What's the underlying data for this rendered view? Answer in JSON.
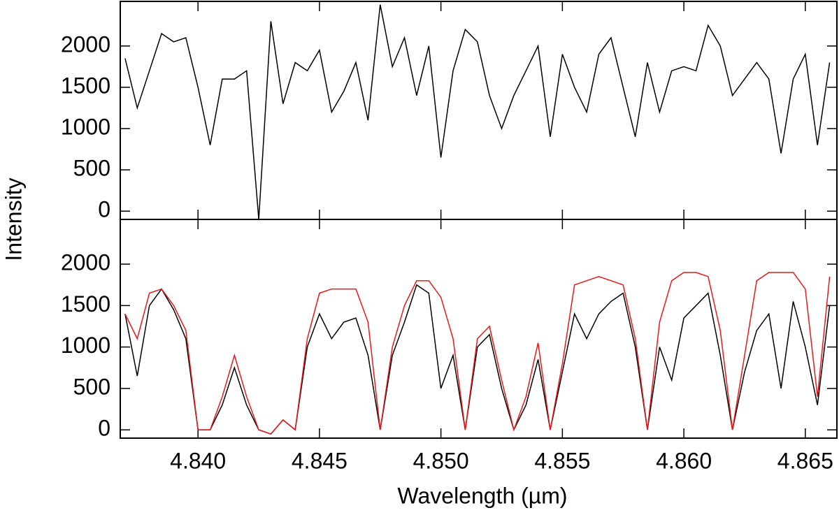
{
  "chart_data": [
    {
      "type": "line",
      "ylabel": "Intensity",
      "x": [
        4.837,
        4.8375,
        4.838,
        4.8385,
        4.839,
        4.8395,
        4.84,
        4.8405,
        4.841,
        4.8415,
        4.842,
        4.8425,
        4.843,
        4.8435,
        4.844,
        4.8445,
        4.845,
        4.8455,
        4.846,
        4.8465,
        4.847,
        4.8475,
        4.848,
        4.8485,
        4.849,
        4.8495,
        4.85,
        4.8505,
        4.851,
        4.8515,
        4.852,
        4.8525,
        4.853,
        4.8535,
        4.854,
        4.8545,
        4.855,
        4.8555,
        4.856,
        4.8565,
        4.857,
        4.8575,
        4.858,
        4.8585,
        4.859,
        4.8595,
        4.86,
        4.8605,
        4.861,
        4.8615,
        4.862,
        4.8625,
        4.863,
        4.8635,
        4.864,
        4.8645,
        4.865,
        4.8655,
        4.866
      ],
      "series": [
        {
          "color": "#000000",
          "values": [
            1850,
            1250,
            1700,
            2150,
            2050,
            2100,
            1500,
            800,
            1600,
            1600,
            1700,
            -100,
            2300,
            1300,
            1800,
            1700,
            1950,
            1200,
            1450,
            1800,
            1100,
            2500,
            1750,
            2100,
            1400,
            2000,
            650,
            1700,
            2200,
            2050,
            1400,
            1000,
            1400,
            1700,
            2000,
            900,
            1900,
            1500,
            1200,
            1900,
            2100,
            1500,
            900,
            1800,
            1200,
            1700,
            1750,
            1700,
            2250,
            2000,
            1400,
            1600,
            1800,
            1600,
            700,
            1600,
            1900,
            800,
            1800
          ]
        }
      ],
      "xlim": [
        4.8368,
        4.8663
      ],
      "ylim": [
        -100,
        2540
      ],
      "xticks": [
        4.84,
        4.845,
        4.85,
        4.855,
        4.86,
        4.865
      ],
      "yticks": [
        0,
        500,
        1000,
        1500,
        2000
      ]
    },
    {
      "type": "line",
      "xlabel": "Wavelength (µm)",
      "x": [
        4.837,
        4.8375,
        4.838,
        4.8385,
        4.839,
        4.8395,
        4.84,
        4.8405,
        4.841,
        4.8415,
        4.842,
        4.8425,
        4.843,
        4.8435,
        4.844,
        4.8445,
        4.845,
        4.8455,
        4.846,
        4.8465,
        4.847,
        4.8475,
        4.848,
        4.8485,
        4.849,
        4.8495,
        4.85,
        4.8505,
        4.851,
        4.8515,
        4.852,
        4.8525,
        4.853,
        4.8535,
        4.854,
        4.8545,
        4.855,
        4.8555,
        4.856,
        4.8565,
        4.857,
        4.8575,
        4.858,
        4.8585,
        4.859,
        4.8595,
        4.86,
        4.8605,
        4.861,
        4.8615,
        4.862,
        4.8625,
        4.863,
        4.8635,
        4.864,
        4.8645,
        4.865,
        4.8655,
        4.866
      ],
      "series": [
        {
          "color": "#000000",
          "values": [
            1400,
            650,
            1500,
            1700,
            1450,
            1100,
            0,
            0,
            300,
            750,
            300,
            0,
            -50,
            120,
            0,
            1000,
            1400,
            1100,
            1300,
            1350,
            900,
            0,
            900,
            1300,
            1750,
            1650,
            500,
            900,
            0,
            1000,
            1150,
            500,
            0,
            300,
            850,
            0,
            700,
            1400,
            1100,
            1400,
            1550,
            1650,
            1000,
            0,
            1000,
            600,
            1350,
            1500,
            1650,
            900,
            0,
            700,
            1200,
            1400,
            500,
            1550,
            1000,
            300,
            1500
          ]
        },
        {
          "color": "#e8191b",
          "values": [
            1400,
            1100,
            1650,
            1700,
            1500,
            1200,
            0,
            0,
            400,
            900,
            400,
            0,
            -50,
            120,
            0,
            1100,
            1650,
            1700,
            1700,
            1700,
            1300,
            0,
            1000,
            1500,
            1800,
            1800,
            1600,
            1100,
            0,
            1100,
            1250,
            600,
            0,
            400,
            1050,
            0,
            800,
            1750,
            1800,
            1850,
            1800,
            1750,
            1100,
            0,
            1300,
            1800,
            1900,
            1900,
            1850,
            1200,
            0,
            900,
            1800,
            1900,
            1900,
            1900,
            1700,
            400,
            1850
          ]
        }
      ],
      "xlim": [
        4.8368,
        4.8663
      ],
      "ylim": [
        -100,
        2540
      ],
      "xticks": [
        {
          "value": 4.84,
          "label": "4.840"
        },
        {
          "value": 4.845,
          "label": "4.845"
        },
        {
          "value": 4.85,
          "label": "4.850"
        },
        {
          "value": 4.855,
          "label": "4.855"
        },
        {
          "value": 4.86,
          "label": "4.860"
        },
        {
          "value": 4.865,
          "label": "4.865"
        }
      ],
      "yticks": [
        0,
        500,
        1000,
        1500,
        2000
      ]
    }
  ]
}
